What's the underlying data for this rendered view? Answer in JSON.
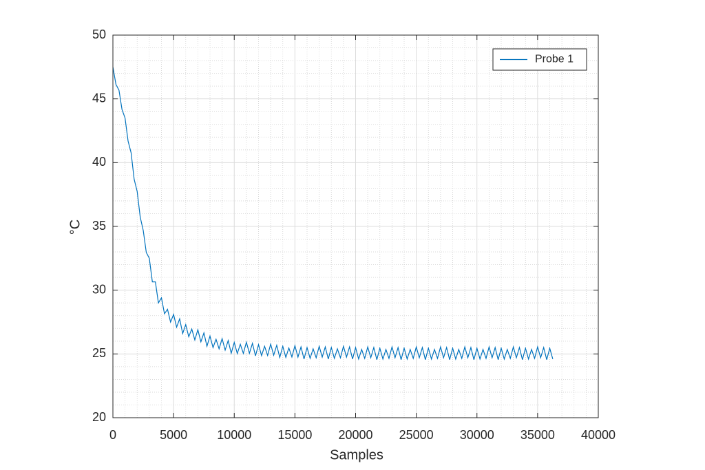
{
  "chart_data": {
    "type": "line",
    "xlabel": "Samples",
    "ylabel": "°C",
    "xlim": [
      0,
      40000
    ],
    "ylim": [
      20,
      50
    ],
    "xticks": [
      0,
      5000,
      10000,
      15000,
      20000,
      25000,
      30000,
      35000,
      40000
    ],
    "yticks": [
      20,
      25,
      30,
      35,
      40,
      45,
      50
    ],
    "grid": true,
    "minor_grid": true,
    "legend": "upper right",
    "x": [
      0,
      250,
      500,
      750,
      1000,
      1250,
      1500,
      1750,
      2000,
      2250,
      2500,
      2750,
      3000,
      3250,
      3500,
      3750,
      4000,
      4250,
      4500,
      4750,
      5000,
      5250,
      5500,
      5750,
      6000,
      6250,
      6500,
      6750,
      7000,
      7250,
      7500,
      7750,
      8000,
      8250,
      8500,
      8750,
      9000,
      9250,
      9500,
      9750,
      10000,
      10250,
      10500,
      10750,
      11000,
      11250,
      11500,
      11750,
      12000,
      12250,
      12500,
      12750,
      13000,
      13250,
      13500,
      13750,
      14000,
      14250,
      14500,
      14750,
      15000,
      15250,
      15500,
      15750,
      16000,
      16250,
      16500,
      16750,
      17000,
      17250,
      17500,
      17750,
      18000,
      18250,
      18500,
      18750,
      19000,
      19250,
      19500,
      19750,
      20000,
      20250,
      20500,
      20750,
      21000,
      21250,
      21500,
      21750,
      22000,
      22250,
      22500,
      22750,
      23000,
      23250,
      23500,
      23750,
      24000,
      24250,
      24500,
      24750,
      25000,
      25250,
      25500,
      25750,
      26000,
      26250,
      26500,
      26750,
      27000,
      27250,
      27500,
      27750,
      28000,
      28250,
      28500,
      28750,
      29000,
      29250,
      29500,
      29750,
      30000,
      30250,
      30500,
      30750,
      31000,
      31250,
      31500,
      31750,
      32000,
      32250,
      32500,
      32750,
      33000,
      33250,
      33500,
      33750,
      34000,
      34250,
      34500,
      34750,
      35000,
      35250,
      35500,
      35750,
      36000,
      36250
    ],
    "series": [
      {
        "name": "Probe 1",
        "color": "#0072bd",
        "values": [
          47.5,
          46.13,
          45.68,
          44.16,
          43.5,
          41.69,
          40.77,
          38.7,
          37.74,
          35.73,
          34.68,
          32.96,
          32.5,
          30.65,
          30.65,
          29.0,
          29.4,
          28.15,
          28.5,
          27.5,
          28.1,
          27.1,
          27.75,
          26.6,
          27.3,
          26.35,
          26.95,
          26.1,
          26.9,
          25.95,
          26.65,
          25.6,
          26.4,
          25.5,
          26.15,
          25.4,
          26.2,
          25.3,
          26.05,
          25.05,
          25.9,
          25.03,
          25.76,
          25.04,
          25.92,
          25.05,
          25.83,
          24.85,
          25.73,
          24.87,
          25.6,
          24.88,
          25.77,
          24.9,
          25.68,
          24.72,
          25.6,
          24.73,
          25.47,
          24.76,
          25.65,
          24.75,
          25.55,
          24.6,
          25.5,
          24.65,
          25.4,
          24.7,
          25.6,
          24.75,
          25.55,
          24.6,
          25.5,
          24.65,
          25.4,
          24.7,
          25.6,
          24.75,
          25.55,
          24.6,
          25.5,
          24.6,
          25.35,
          24.65,
          25.55,
          24.7,
          25.5,
          24.55,
          25.45,
          24.6,
          25.35,
          24.65,
          25.55,
          24.7,
          25.5,
          24.55,
          25.45,
          24.6,
          25.35,
          24.65,
          25.55,
          24.7,
          25.5,
          24.55,
          25.45,
          24.6,
          25.35,
          24.65,
          25.55,
          24.7,
          25.5,
          24.55,
          25.45,
          24.6,
          25.35,
          24.65,
          25.55,
          24.7,
          25.5,
          24.55,
          25.45,
          24.6,
          25.35,
          24.65,
          25.55,
          24.7,
          25.5,
          24.55,
          25.45,
          24.6,
          25.35,
          24.65,
          25.55,
          24.7,
          25.5,
          24.55,
          25.45,
          24.6,
          25.35,
          24.65,
          25.55,
          24.7,
          25.5,
          24.55,
          25.45,
          24.6
        ]
      }
    ]
  }
}
